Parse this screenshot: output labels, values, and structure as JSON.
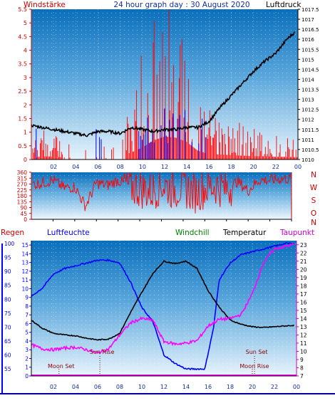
{
  "chart_data": [
    {
      "type": "line",
      "title": "24 hour graph day : 30 August 2020",
      "left_axis_title": "Windstärke",
      "right_axis_title": "Luftdruck",
      "x_ticks": [
        "02",
        "04",
        "06",
        "08",
        "10",
        "12",
        "14",
        "16",
        "18",
        "20",
        "22",
        "00"
      ],
      "left_ticks": [
        "0",
        "0.5",
        "1",
        "1.5",
        "2",
        "2.5",
        "3",
        "3.5",
        "4",
        "4.5",
        "5",
        "5.5"
      ],
      "left_range": [
        0,
        5.5
      ],
      "right_ticks": [
        "1010",
        "1010.5",
        "1011",
        "1011.5",
        "1012",
        "1012.5",
        "1013",
        "1013.5",
        "1014",
        "1014.5",
        "1015",
        "1015.5",
        "1016",
        "1016.5",
        "1017",
        "1017.5"
      ],
      "right_range": [
        1010,
        1017.5
      ],
      "colors": {
        "wind": "#ff0000",
        "gust": "#0000ff",
        "pressure": "#000000",
        "left_axis": "#cc0000"
      },
      "series": [
        {
          "name": "Luftdruck",
          "axis": "right",
          "x": [
            0,
            1,
            2,
            3,
            4,
            5,
            6,
            7,
            8,
            9,
            10,
            11,
            12,
            13,
            14,
            15,
            16,
            17,
            18,
            19,
            20,
            21,
            22,
            23,
            24
          ],
          "values": [
            1011.7,
            1011.6,
            1011.5,
            1011.4,
            1011.3,
            1011.2,
            1011.4,
            1011.4,
            1011.3,
            1011.6,
            1011.5,
            1011.4,
            1011.5,
            1011.5,
            1011.6,
            1011.6,
            1011.9,
            1012.6,
            1013.2,
            1013.8,
            1014.4,
            1014.9,
            1015.3,
            1016.0,
            1016.5
          ]
        },
        {
          "name": "Windstärke",
          "axis": "left",
          "x": [
            0,
            1,
            2,
            3,
            4,
            5,
            6,
            7,
            8,
            9,
            10,
            11,
            12,
            13,
            14,
            15,
            16,
            17,
            18,
            19,
            20,
            21,
            22,
            23,
            24
          ],
          "values": [
            0.3,
            0.6,
            0.5,
            0.4,
            0.3,
            0.2,
            0.2,
            0.3,
            0.6,
            1.3,
            2.2,
            3.5,
            4.2,
            4.0,
            3.2,
            1.6,
            1.0,
            0.9,
            0.8,
            0.7,
            0.6,
            0.6,
            0.5,
            0.5,
            0.4
          ]
        }
      ]
    },
    {
      "type": "scatter",
      "right_axis_letters": [
        "N",
        "W",
        "S",
        "O",
        "N"
      ],
      "y_ticks": [
        "0",
        "45",
        "90",
        "135",
        "180",
        "225",
        "270",
        "315",
        "360"
      ],
      "ylim": [
        0,
        360
      ],
      "x_ticks": [
        "02",
        "04",
        "06",
        "08",
        "10",
        "12",
        "14",
        "16",
        "18",
        "20",
        "22",
        "00"
      ],
      "colors": {
        "direction": "#ff0000",
        "left_axis": "#cc0000"
      },
      "series": [
        {
          "name": "Windrichtung",
          "x": [
            0.5,
            2,
            3,
            4,
            5,
            6,
            7,
            8,
            9,
            10,
            11,
            12,
            13,
            14,
            15,
            16,
            17,
            18,
            19,
            20,
            21,
            22,
            23
          ],
          "values": [
            270,
            300,
            240,
            250,
            100,
            280,
            260,
            300,
            250,
            240,
            210,
            270,
            230,
            250,
            200,
            240,
            260,
            230,
            290,
            220,
            300,
            300,
            310
          ]
        }
      ]
    },
    {
      "type": "line",
      "left_axis_title": "Regen",
      "legend": [
        {
          "label": "Luftfeuchte",
          "color": "#0000ff"
        },
        {
          "label": "Windchill",
          "color": "#008000"
        },
        {
          "label": "Temperatur",
          "color": "#000000"
        },
        {
          "label": "Taupunkt",
          "color": "#ff00ff"
        }
      ],
      "x_ticks": [
        "02",
        "04",
        "06",
        "08",
        "10",
        "12",
        "14",
        "16",
        "18",
        "20",
        "22",
        "00"
      ],
      "regen_ticks": [
        "0",
        "1",
        "2",
        "3",
        "4",
        "5",
        "6",
        "7",
        "8",
        "9",
        "10",
        "11",
        "12",
        "13",
        "14",
        "15"
      ],
      "regen_range": [
        0,
        15.5
      ],
      "humidity_ticks": [
        "55",
        "60",
        "65",
        "70",
        "75",
        "80",
        "85",
        "90",
        "95",
        "100"
      ],
      "humidity_range": [
        52.5,
        101
      ],
      "temperature_ticks": [
        "7",
        "8",
        "9",
        "10",
        "11",
        "12",
        "13",
        "14",
        "15",
        "16",
        "17",
        "18",
        "19",
        "20",
        "21",
        "22",
        "23"
      ],
      "temperature_range": [
        7,
        23.5
      ],
      "annotations": [
        {
          "text": "Moon Set",
          "hour": 2.5
        },
        {
          "text": "Sun Rise",
          "hour": 6.2
        },
        {
          "text": "Sun Set",
          "hour": 20.2
        },
        {
          "text": "Moon Rise",
          "hour": 20.0
        }
      ],
      "colors": {
        "regen_axis": "#0000ff",
        "regen_title": "#cc0000",
        "temperature_axis": "#cc00cc",
        "markers": "#8b0000"
      },
      "series": [
        {
          "name": "Luftfeuchte",
          "axis": "humidity",
          "x": [
            0,
            1,
            2,
            3,
            4,
            5,
            6,
            7,
            8,
            9,
            10,
            11,
            12,
            13,
            14,
            15,
            15.7,
            16.5,
            17,
            18,
            19,
            20,
            21,
            22,
            23,
            24
          ],
          "values": [
            81,
            84,
            89,
            91,
            92,
            93,
            94,
            94,
            93,
            86,
            77,
            72,
            60,
            57,
            55,
            55,
            55,
            70,
            87,
            93,
            96,
            97,
            98,
            99,
            100,
            100
          ]
        },
        {
          "name": "Temperatur",
          "axis": "temperature",
          "x": [
            0,
            1,
            2,
            3,
            4,
            5,
            6,
            7,
            8,
            9,
            10,
            11,
            12,
            13,
            14,
            15,
            16,
            17,
            18,
            19,
            20,
            21,
            22,
            23,
            24
          ],
          "values": [
            13.8,
            12.8,
            12.2,
            12.0,
            11.9,
            11.6,
            11.4,
            11.5,
            12.2,
            14.8,
            17.2,
            19.5,
            21.0,
            20.7,
            21.0,
            20.1,
            17.4,
            15.4,
            13.8,
            13.3,
            13.0,
            12.9,
            13.0,
            13.1,
            13.2
          ]
        },
        {
          "name": "Taupunkt",
          "axis": "temperature",
          "x": [
            0,
            1,
            2,
            3,
            4,
            5,
            6,
            7,
            8,
            9,
            10,
            11,
            12,
            13,
            14,
            15,
            16,
            17,
            18,
            19,
            20,
            21,
            22,
            23,
            24
          ],
          "values": [
            10.8,
            10.3,
            10.2,
            10.4,
            10.5,
            10.2,
            9.8,
            10.3,
            12.0,
            13.5,
            14.0,
            13.8,
            11.2,
            10.9,
            11.0,
            11.3,
            13.1,
            13.9,
            14.0,
            14.5,
            17.0,
            20.8,
            22.5,
            22.8,
            23.1
          ]
        },
        {
          "name": "Regen",
          "axis": "regen",
          "x": [
            0,
            24
          ],
          "values": [
            0,
            0
          ]
        }
      ]
    }
  ]
}
